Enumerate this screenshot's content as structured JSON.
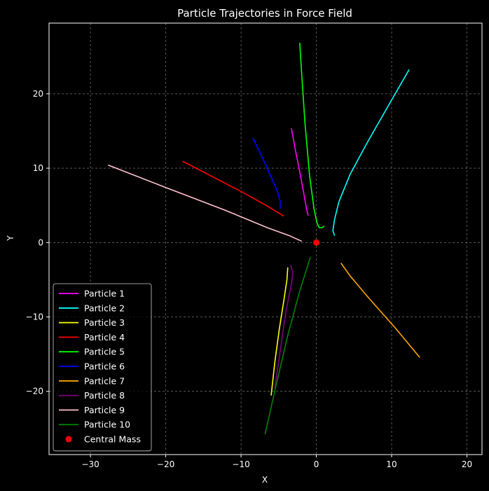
{
  "chart_data": {
    "type": "line",
    "title": "Particle Trajectories in Force Field",
    "xlabel": "X",
    "ylabel": "Y",
    "xlim": [
      -35.5,
      22
    ],
    "ylim": [
      -28.5,
      29.5
    ],
    "xticks": [
      -30,
      -20,
      -10,
      0,
      10,
      20
    ],
    "yticks": [
      -20,
      -10,
      0,
      10,
      20
    ],
    "xtick_labels": [
      "−30",
      "−20",
      "−10",
      "0",
      "10",
      "20"
    ],
    "ytick_labels": [
      "−20",
      "−10",
      "0",
      "10",
      "20"
    ],
    "grid": true,
    "legend_position": "lower-left",
    "series": [
      {
        "name": "Particle 1",
        "color": "#ff00ff",
        "points": [
          [
            -3.3,
            15.3
          ],
          [
            -2.8,
            12.5
          ],
          [
            -2.2,
            9.5
          ],
          [
            -1.7,
            6.8
          ],
          [
            -1.3,
            4.5
          ],
          [
            -1.1,
            3.7
          ]
        ]
      },
      {
        "name": "Particle 2",
        "color": "#00ffff",
        "points": [
          [
            12.3,
            23.2
          ],
          [
            9.5,
            18.3
          ],
          [
            6.8,
            13.5
          ],
          [
            4.5,
            9.2
          ],
          [
            3.0,
            5.5
          ],
          [
            2.4,
            3.0
          ],
          [
            2.2,
            1.6
          ],
          [
            2.4,
            1.0
          ]
        ]
      },
      {
        "name": "Particle 3",
        "color": "#ffff00",
        "points": [
          [
            -6.0,
            -20.5
          ],
          [
            -5.5,
            -16.0
          ],
          [
            -4.9,
            -11.5
          ],
          [
            -4.3,
            -7.7
          ],
          [
            -3.9,
            -5.0
          ],
          [
            -3.8,
            -3.4
          ]
        ]
      },
      {
        "name": "Particle 4",
        "color": "#ff0000",
        "points": [
          [
            -17.7,
            10.9
          ],
          [
            -13.5,
            8.7
          ],
          [
            -9.5,
            6.6
          ],
          [
            -6.5,
            4.9
          ],
          [
            -4.4,
            3.6
          ]
        ]
      },
      {
        "name": "Particle 5",
        "color": "#00ff00",
        "points": [
          [
            -2.2,
            26.8
          ],
          [
            -1.9,
            22.0
          ],
          [
            -1.5,
            16.0
          ],
          [
            -0.9,
            9.0
          ],
          [
            -0.3,
            4.5
          ],
          [
            0.1,
            2.6
          ],
          [
            0.4,
            2.0
          ],
          [
            0.8,
            2.0
          ],
          [
            1.0,
            2.2
          ]
        ]
      },
      {
        "name": "Particle 6",
        "color": "#0000ff",
        "points": [
          [
            -8.4,
            14.0
          ],
          [
            -7.2,
            11.5
          ],
          [
            -6.1,
            9.0
          ],
          [
            -5.2,
            7.0
          ],
          [
            -4.8,
            5.5
          ],
          [
            -4.8,
            4.6
          ]
        ]
      },
      {
        "name": "Particle 7",
        "color": "#ffa500",
        "points": [
          [
            3.3,
            -2.8
          ],
          [
            4.5,
            -4.5
          ],
          [
            7.0,
            -7.5
          ],
          [
            10.5,
            -11.5
          ],
          [
            13.7,
            -15.4
          ]
        ]
      },
      {
        "name": "Particle 8",
        "color": "#800080",
        "points": [
          [
            -5.5,
            -19.5
          ],
          [
            -4.8,
            -14.5
          ],
          [
            -4.0,
            -9.0
          ],
          [
            -3.3,
            -5.5
          ],
          [
            -3.1,
            -4.0
          ],
          [
            -3.4,
            -3.1
          ]
        ]
      },
      {
        "name": "Particle 9",
        "color": "#ffc0cb",
        "points": [
          [
            -27.6,
            10.4
          ],
          [
            -20.0,
            7.4
          ],
          [
            -12.0,
            4.3
          ],
          [
            -6.5,
            2.0
          ],
          [
            -3.5,
            0.9
          ],
          [
            -2.0,
            0.2
          ]
        ]
      },
      {
        "name": "Particle 10",
        "color": "#008000",
        "points": [
          [
            -6.8,
            -25.7
          ],
          [
            -5.3,
            -19.0
          ],
          [
            -3.8,
            -12.5
          ],
          [
            -2.2,
            -6.5
          ],
          [
            -0.8,
            -2.0
          ]
        ]
      }
    ],
    "central_mass": {
      "name": "Central Mass",
      "color": "#ff0000",
      "point": [
        0,
        0
      ]
    }
  }
}
